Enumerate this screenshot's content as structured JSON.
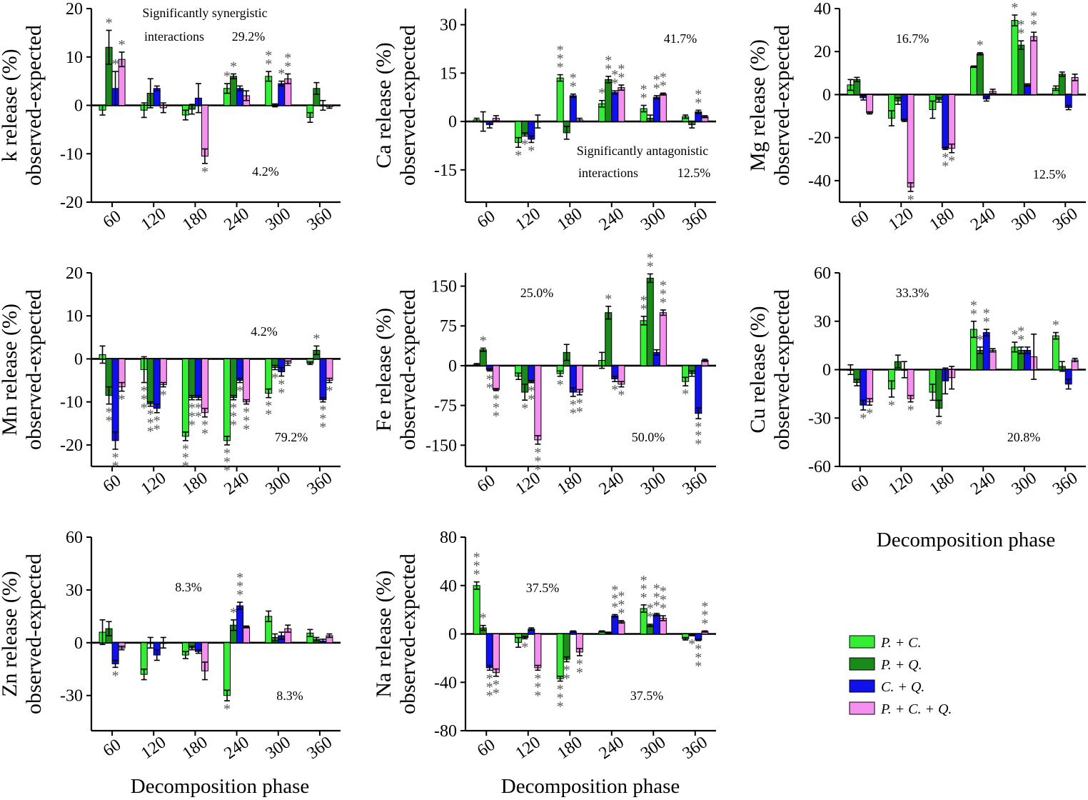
{
  "colors": {
    "P_C": "#33ee33",
    "P_Q": "#1a8a1a",
    "C_Q": "#1010ee",
    "P_C_Q": "#f590f0"
  },
  "legend": {
    "items": [
      {
        "key": "P_C",
        "label": "P. + C."
      },
      {
        "key": "P_Q",
        "label": "P. + Q."
      },
      {
        "key": "C_Q",
        "label": "C. + Q."
      },
      {
        "key": "P_C_Q",
        "label": "P. + C. + Q."
      }
    ]
  },
  "xaxis_title": "Decomposition phase",
  "chart_data": [
    {
      "type": "bar",
      "ylabel_line1": "k release (%)",
      "ylabel_line2": "observed-expected",
      "categories": [
        "60",
        "120",
        "180",
        "240",
        "300",
        "360"
      ],
      "ylim": [
        -20,
        20
      ],
      "yticks": [
        -20,
        -10,
        0,
        10,
        20
      ],
      "series": [
        {
          "name": "P. + C.",
          "values": [
            -1,
            -1,
            -2,
            3.5,
            6,
            -2.5
          ],
          "errors": [
            1,
            1.5,
            1,
            1,
            1,
            1
          ]
        },
        {
          "name": "P. + Q.",
          "values": [
            12,
            2.5,
            -0.8,
            6,
            0,
            3.5
          ],
          "errors": [
            3.5,
            3,
            1,
            0.5,
            0.3,
            1.2
          ]
        },
        {
          "name": "C. + Q.",
          "values": [
            3.5,
            3.5,
            1.5,
            3.5,
            4.5,
            0
          ],
          "errors": [
            3.5,
            0.5,
            3,
            0.5,
            0.5,
            1
          ]
        },
        {
          "name": "P. + C. + Q.",
          "values": [
            9.5,
            -0.5,
            -10.5,
            2,
            5.5,
            -0.3
          ],
          "errors": [
            1.5,
            1,
            1.5,
            1,
            1,
            0.3
          ]
        }
      ],
      "stars": [
        [
          "",
          "*",
          "*",
          "*"
        ],
        [
          "",
          "",
          "",
          ""
        ],
        [
          "",
          "",
          "",
          "*"
        ],
        [
          "*",
          "*",
          "",
          ""
        ],
        [
          "**",
          "",
          "*",
          "**"
        ],
        [
          "",
          "",
          "",
          ""
        ]
      ],
      "annotations": [
        {
          "text": "Significantly synergistic"
        },
        {
          "text": "interactions"
        },
        {
          "text": "29.2%"
        },
        {
          "text": "4.2%"
        }
      ]
    },
    {
      "type": "bar",
      "ylabel_line1": "Ca release (%)",
      "ylabel_line2": "observed-expected",
      "categories": [
        "60",
        "120",
        "180",
        "240",
        "300",
        "360"
      ],
      "ylim": [
        -25,
        35
      ],
      "yticks": [
        -15,
        0,
        15,
        30
      ],
      "series": [
        {
          "name": "P. + C.",
          "values": [
            0.5,
            -6.5,
            13.5,
            5.5,
            4,
            1.5
          ],
          "errors": [
            0.5,
            1.5,
            1,
            1,
            1,
            0.5
          ]
        },
        {
          "name": "P. + Q.",
          "values": [
            0,
            -4,
            -3.5,
            13,
            1,
            -1
          ],
          "errors": [
            3,
            0.5,
            2,
            1,
            1,
            1
          ]
        },
        {
          "name": "C. + Q.",
          "values": [
            -1,
            -5.5,
            8,
            9,
            7.5,
            3
          ],
          "errors": [
            1,
            1,
            0.5,
            0.5,
            0.5,
            0.5
          ]
        },
        {
          "name": "P. + C. + Q.",
          "values": [
            1,
            0,
            0.5,
            10.5,
            8.5,
            1.5
          ],
          "errors": [
            0.8,
            2,
            0.5,
            0.8,
            0.3,
            0.3
          ]
        }
      ],
      "stars": [
        [
          "",
          "",
          "",
          ""
        ],
        [
          "*",
          "*",
          "*",
          ""
        ],
        [
          "***",
          "",
          "**",
          ""
        ],
        [
          "*",
          "**",
          "**",
          "**"
        ],
        [
          "**",
          "",
          "**",
          "**"
        ],
        [
          "",
          "",
          "**",
          ""
        ]
      ],
      "annotations": [
        {
          "text": "41.7%"
        },
        {
          "text": "Significantly antagonistic"
        },
        {
          "text": "interactions"
        },
        {
          "text": "12.5%"
        }
      ]
    },
    {
      "type": "bar",
      "ylabel_line1": "Mg release (%)",
      "ylabel_line2": "observed-expected",
      "categories": [
        "60",
        "120",
        "180",
        "240",
        "300",
        "360"
      ],
      "ylim": [
        -50,
        40
      ],
      "yticks": [
        -40,
        -20,
        0,
        20,
        40
      ],
      "series": [
        {
          "name": "P. + C.",
          "values": [
            4.5,
            -11,
            -7,
            13,
            34.5,
            3
          ],
          "errors": [
            2.5,
            3.5,
            4,
            0.3,
            2.5,
            1
          ]
        },
        {
          "name": "P. + Q.",
          "values": [
            7,
            -3,
            -2.5,
            19,
            23,
            9.5
          ],
          "errors": [
            1,
            1.5,
            1,
            0.5,
            2,
            1
          ]
        },
        {
          "name": "C. + Q.",
          "values": [
            -1.5,
            -12,
            -25,
            -2,
            4.5,
            -6
          ],
          "errors": [
            1,
            0.5,
            0.5,
            1,
            0.5,
            1
          ]
        },
        {
          "name": "P. + C. + Q.",
          "values": [
            -8.5,
            -43,
            -25,
            1.5,
            27,
            8
          ],
          "errors": [
            0.5,
            2,
            2,
            1,
            2,
            1.5
          ]
        }
      ],
      "stars": [
        [
          "",
          "",
          "",
          ""
        ],
        [
          "",
          "",
          "",
          "*"
        ],
        [
          "",
          "",
          "**",
          "*"
        ],
        [
          "",
          "*",
          "",
          ""
        ],
        [
          "*",
          "**",
          "",
          "**"
        ],
        [
          "",
          "",
          "",
          ""
        ]
      ],
      "annotations": [
        {
          "text": "16.7%"
        },
        {
          "text": "12.5%"
        }
      ]
    },
    {
      "type": "bar",
      "ylabel_line1": "Mn release (%)",
      "ylabel_line2": "observed-expected",
      "categories": [
        "60",
        "120",
        "180",
        "240",
        "300",
        "360"
      ],
      "ylim": [
        -25,
        20
      ],
      "yticks": [
        -20,
        -10,
        0,
        10,
        20
      ],
      "series": [
        {
          "name": "P. + C.",
          "values": [
            1,
            -2.5,
            -18,
            -19,
            -8,
            -1
          ],
          "errors": [
            2,
            3,
            1,
            1,
            1,
            0.3
          ]
        },
        {
          "name": "P. + Q.",
          "values": [
            -8.5,
            -10.5,
            -9,
            -9,
            -2,
            2
          ],
          "errors": [
            2,
            0.5,
            0.5,
            0.5,
            0.5,
            1
          ]
        },
        {
          "name": "C. + Q.",
          "values": [
            -19,
            -11.5,
            -9,
            -5,
            -3,
            -9.5
          ],
          "errors": [
            2,
            1,
            0.5,
            0.5,
            1,
            0.5
          ]
        },
        {
          "name": "P. + C. + Q.",
          "values": [
            -6.5,
            -6,
            -12.5,
            -10,
            -1,
            -5
          ],
          "errors": [
            1,
            0.5,
            1,
            0.5,
            0.5,
            0.5
          ]
        }
      ],
      "stars": [
        [
          "",
          "**",
          "**",
          "*"
        ],
        [
          "***",
          "***",
          "**",
          "*"
        ],
        [
          "***",
          "***",
          "**",
          "**"
        ],
        [
          "***",
          "***",
          "*",
          "***"
        ],
        [
          "**",
          "*",
          "**",
          ""
        ],
        [
          "",
          "*",
          "***",
          "*"
        ]
      ],
      "annotations": [
        {
          "text": "4.2%"
        },
        {
          "text": "79.2%"
        }
      ]
    },
    {
      "type": "bar",
      "ylabel_line1": "Fe release (%)",
      "ylabel_line2": "observed-expected",
      "categories": [
        "60",
        "120",
        "180",
        "240",
        "300",
        "360"
      ],
      "ylim": [
        -190,
        175
      ],
      "yticks": [
        -150,
        -75,
        0,
        75,
        150
      ],
      "series": [
        {
          "name": "P. + C.",
          "values": [
            2,
            -20,
            -15,
            10,
            85,
            -30
          ],
          "errors": [
            2,
            6,
            5,
            15,
            8,
            8
          ]
        },
        {
          "name": "P. + Q.",
          "values": [
            30,
            -50,
            25,
            100,
            165,
            -15
          ],
          "errors": [
            3,
            15,
            15,
            12,
            8,
            5
          ]
        },
        {
          "name": "C. + Q.",
          "values": [
            -8,
            -30,
            -50,
            -25,
            25,
            -90
          ],
          "errors": [
            2,
            2,
            8,
            5,
            5,
            10
          ]
        },
        {
          "name": "P. + C. + Q.",
          "values": [
            -45,
            -140,
            -50,
            -35,
            100,
            10
          ],
          "errors": [
            2,
            8,
            5,
            5,
            5,
            2
          ]
        }
      ],
      "stars": [
        [
          "",
          "*",
          "**",
          "***"
        ],
        [
          "",
          "*",
          "**",
          "***"
        ],
        [
          "*",
          "",
          "**",
          "**"
        ],
        [
          "",
          "*",
          "*",
          "*"
        ],
        [
          "**",
          "**",
          "",
          "***"
        ],
        [
          "*",
          "",
          "***",
          ""
        ]
      ],
      "annotations": [
        {
          "text": "25.0%"
        },
        {
          "text": "50.0%"
        }
      ]
    },
    {
      "type": "bar",
      "ylabel_line1": "Cu release (%)",
      "ylabel_line2": "observed-expected",
      "categories": [
        "60",
        "120",
        "180",
        "240",
        "300",
        "360"
      ],
      "ylim": [
        -60,
        60
      ],
      "yticks": [
        -60,
        -30,
        0,
        30,
        60
      ],
      "series": [
        {
          "name": "P. + C.",
          "values": [
            0,
            -12,
            -14,
            25,
            14,
            21
          ],
          "errors": [
            3,
            5,
            5,
            5,
            3,
            2
          ]
        },
        {
          "name": "P. + Q.",
          "values": [
            -8,
            5,
            -24,
            12,
            12,
            2
          ],
          "errors": [
            2,
            4,
            5,
            2,
            2,
            3
          ]
        },
        {
          "name": "C. + Q.",
          "values": [
            -22,
            0,
            -7,
            23,
            12,
            -9
          ],
          "errors": [
            3,
            5,
            8,
            2,
            2,
            3
          ]
        },
        {
          "name": "P. + C. + Q.",
          "values": [
            -20,
            -18,
            -5,
            12,
            8,
            6
          ],
          "errors": [
            2,
            2,
            7,
            1,
            14,
            1
          ]
        }
      ],
      "stars": [
        [
          "",
          "",
          "*",
          "*"
        ],
        [
          "*",
          "",
          "",
          "*"
        ],
        [
          "",
          "*",
          "",
          ""
        ],
        [
          "**",
          "*",
          "**",
          ""
        ],
        [
          "*",
          "**",
          "",
          ""
        ],
        [
          "*",
          "",
          "",
          ""
        ]
      ],
      "annotations": [
        {
          "text": "33.3%"
        },
        {
          "text": "20.8%"
        }
      ]
    },
    {
      "type": "bar",
      "ylabel_line1": "Zn release (%)",
      "ylabel_line2": "observed-expected",
      "categories": [
        "60",
        "120",
        "180",
        "240",
        "300",
        "360"
      ],
      "ylim": [
        -50,
        60
      ],
      "yticks": [
        -30,
        0,
        30,
        60
      ],
      "series": [
        {
          "name": "P. + C.",
          "values": [
            6,
            -18,
            -7,
            -30,
            15,
            5.5
          ],
          "errors": [
            7,
            3,
            2,
            3,
            3,
            2
          ]
        },
        {
          "name": "P. + Q.",
          "values": [
            8,
            0,
            -3,
            10,
            3,
            2
          ],
          "errors": [
            4,
            3,
            1,
            3,
            2,
            1
          ]
        },
        {
          "name": "C. + Q.",
          "values": [
            -12,
            -7,
            -5,
            21,
            4,
            1
          ],
          "errors": [
            2,
            3,
            1,
            2,
            2,
            1
          ]
        },
        {
          "name": "P. + C. + Q.",
          "values": [
            -3,
            0,
            -16,
            9,
            8,
            4
          ],
          "errors": [
            1,
            3,
            5,
            0.5,
            2,
            1
          ]
        }
      ],
      "stars": [
        [
          "",
          "",
          "*",
          ""
        ],
        [
          "",
          "",
          "",
          ""
        ],
        [
          "",
          "",
          "",
          ""
        ],
        [
          "*",
          "*",
          "***",
          ""
        ],
        [
          "",
          "",
          "",
          ""
        ],
        [
          "",
          "",
          "",
          ""
        ]
      ],
      "annotations": [
        {
          "text": "8.3%"
        },
        {
          "text": "8.3%"
        }
      ]
    },
    {
      "type": "bar",
      "ylabel_line1": "Na release (%)",
      "ylabel_line2": "observed-expected",
      "categories": [
        "60",
        "120",
        "180",
        "240",
        "300",
        "360"
      ],
      "ylim": [
        -80,
        80
      ],
      "yticks": [
        -80,
        -40,
        0,
        40,
        80
      ],
      "series": [
        {
          "name": "P. + C.",
          "values": [
            40,
            -7,
            -37,
            2,
            21,
            -4
          ],
          "errors": [
            3,
            4,
            2,
            0.5,
            3,
            1
          ]
        },
        {
          "name": "P. + Q.",
          "values": [
            5,
            -3,
            -21,
            1,
            7,
            -1
          ],
          "errors": [
            2,
            1,
            2,
            0.5,
            1,
            0.5
          ]
        },
        {
          "name": "C. + Q.",
          "values": [
            -28,
            4,
            2,
            15,
            16,
            -5
          ],
          "errors": [
            2,
            1,
            0.5,
            1,
            1,
            0.5
          ]
        },
        {
          "name": "P. + C. + Q.",
          "values": [
            -32,
            -28,
            -15,
            10,
            13,
            2
          ],
          "errors": [
            3,
            2,
            3,
            1,
            2,
            0.5
          ]
        }
      ],
      "stars": [
        [
          "***",
          "*",
          "***",
          "**"
        ],
        [
          "",
          "*",
          "",
          "***"
        ],
        [
          "***",
          "**",
          "",
          "**"
        ],
        [
          "",
          "",
          "***",
          "***"
        ],
        [
          "***",
          "**",
          "***",
          "***"
        ],
        [
          "",
          "*",
          "***",
          "***"
        ]
      ],
      "annotations": [
        {
          "text": "37.5%"
        },
        {
          "text": "37.5%"
        }
      ]
    }
  ]
}
